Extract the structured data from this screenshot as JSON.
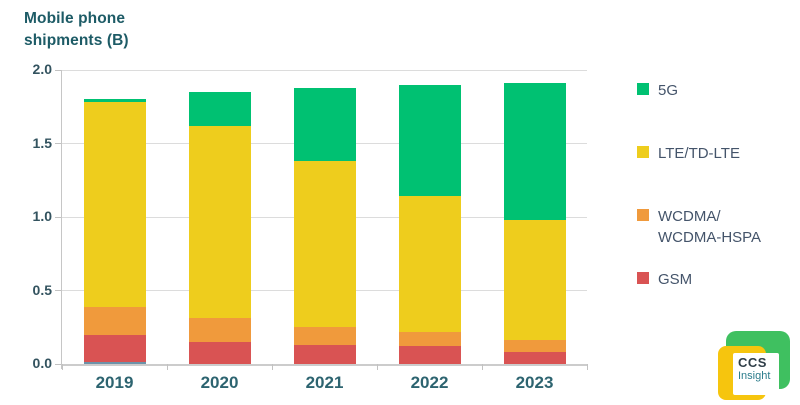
{
  "title": {
    "text": "Mobile phone\nshipments (B)"
  },
  "chart_data": {
    "type": "bar",
    "stacked": true,
    "title": "Mobile phone shipments (B)",
    "categories": [
      "2019",
      "2020",
      "2021",
      "2022",
      "2023"
    ],
    "series": [
      {
        "name": "GSM",
        "color": "#d95353",
        "values": [
          0.2,
          0.15,
          0.13,
          0.12,
          0.08
        ]
      },
      {
        "name": "WCDMA/WCDMA-HSPA",
        "color": "#f09a3c",
        "values": [
          0.19,
          0.16,
          0.12,
          0.1,
          0.08
        ]
      },
      {
        "name": "LTE/TD-LTE",
        "color": "#eecd1d",
        "values": [
          1.39,
          1.31,
          1.13,
          0.92,
          0.82
        ]
      },
      {
        "name": "5G",
        "color": "#00c172",
        "values": [
          0.02,
          0.23,
          0.5,
          0.76,
          0.93
        ]
      }
    ],
    "totals": [
      1.8,
      1.85,
      1.88,
      1.9,
      1.91
    ],
    "ylim": [
      0,
      2.0
    ],
    "yticks": [
      "0.0",
      "0.5",
      "1.0",
      "1.5",
      "2.0"
    ],
    "grid": "horizontal",
    "legend_position": "right",
    "legend": [
      {
        "label": "5G",
        "color": "#00c172"
      },
      {
        "label": "LTE/TD-LTE",
        "color": "#eecd1d"
      },
      {
        "label": "WCDMA/\nWCDMA-HSPA",
        "color": "#f09a3c"
      },
      {
        "label": "GSM",
        "color": "#d95353"
      }
    ],
    "baseline_sliver": {
      "category": "2019",
      "approx_value": 0.01,
      "color": "#6d92a8"
    }
  },
  "logo": {
    "line1": "CCS",
    "line2": "Insight"
  },
  "colors": {
    "title_text": "#1d5b66",
    "y_axis_labels": "#33535f",
    "x_axis_labels": "#2d6470",
    "legend_text": "#44546a",
    "gridline": "#dcdcdc",
    "axis_line": "#c6c6c6",
    "logo_green": "#3fc060",
    "logo_yellow": "#f6c50e"
  }
}
